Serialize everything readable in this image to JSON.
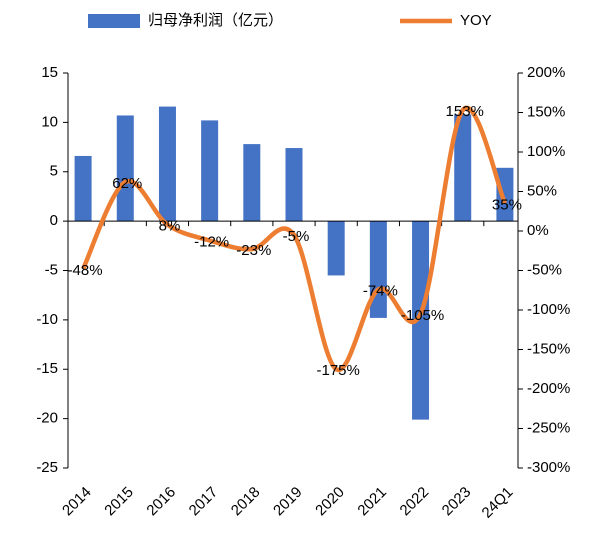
{
  "chart_data": {
    "type": "bar_line",
    "categories": [
      "2014",
      "2015",
      "2016",
      "2017",
      "2018",
      "2019",
      "2020",
      "2021",
      "2022",
      "2023",
      "24Q1"
    ],
    "series": [
      {
        "name": "归母净利润（亿元）",
        "color": "#4472c4",
        "type": "bar",
        "values": [
          6.6,
          10.7,
          11.6,
          10.2,
          7.8,
          7.4,
          -5.5,
          -9.8,
          -20.1,
          10.8,
          5.4
        ]
      },
      {
        "name": "YOY",
        "color": "#ed7d31",
        "type": "line",
        "axis": "y2",
        "values": [
          -48,
          62,
          8,
          -12,
          -23,
          -5,
          -175,
          -74,
          -105,
          153,
          35
        ],
        "value_labels": [
          "-48%",
          "62%",
          "8%",
          "-12%",
          "-23%",
          "-5%",
          "-175%",
          "-74%",
          "-105%",
          "153%",
          "35%"
        ]
      }
    ],
    "ylim": [
      -25,
      15
    ],
    "yticks": [
      -25,
      -20,
      -15,
      -10,
      -5,
      0,
      5,
      10,
      15
    ],
    "y2lim": [
      -300,
      200
    ],
    "y2ticks": [
      {
        "value": -300,
        "label": "-300%"
      },
      {
        "value": -250,
        "label": "-250%"
      },
      {
        "value": -200,
        "label": "-200%"
      },
      {
        "value": -150,
        "label": "-150%"
      },
      {
        "value": -100,
        "label": "-100%"
      },
      {
        "value": -50,
        "label": "-50%"
      },
      {
        "value": 0,
        "label": "0%"
      },
      {
        "value": 50,
        "label": "50%"
      },
      {
        "value": 100,
        "label": "100%"
      },
      {
        "value": 150,
        "label": "150%"
      },
      {
        "value": 200,
        "label": "200%"
      }
    ],
    "legend": "top"
  }
}
